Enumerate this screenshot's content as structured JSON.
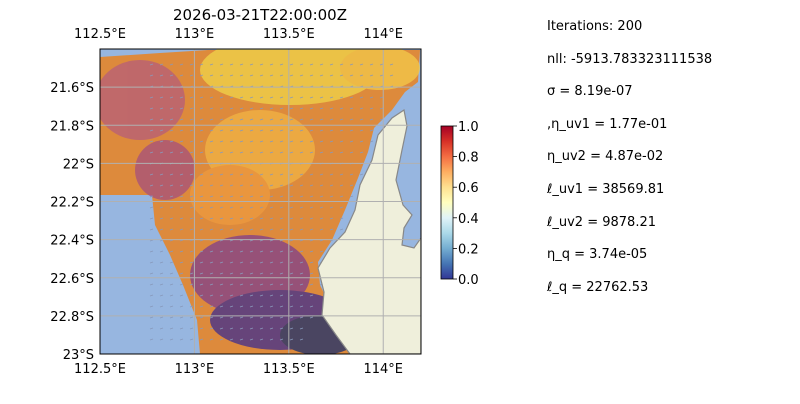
{
  "chart_data": {
    "type": "heatmap",
    "title": "2026-03-21T22:00:00Z",
    "x_tick_labels": [
      "112.5°E",
      "113°E",
      "113.5°E",
      "114°E"
    ],
    "x_ticks": [
      112.5,
      113.0,
      113.5,
      114.0
    ],
    "y_tick_labels": [
      "21.6°S",
      "21.8°S",
      "22°S",
      "22.2°S",
      "22.4°S",
      "22.6°S",
      "22.8°S",
      "23°S"
    ],
    "y_ticks": [
      -21.6,
      -21.8,
      -22.0,
      -22.2,
      -22.4,
      -22.6,
      -22.8,
      -23.0
    ],
    "xlim": [
      112.5,
      114.2
    ],
    "ylim": [
      -23.0,
      -21.4
    ],
    "colorbar": {
      "ticks": [
        0.0,
        0.2,
        0.4,
        0.6,
        0.8,
        1.0
      ],
      "tick_labels": [
        "0.0",
        "0.2",
        "0.4",
        "0.6",
        "0.8",
        "1.0"
      ],
      "range": [
        0.0,
        1.0
      ],
      "colormap": "RdYlBu_r"
    },
    "grid": true,
    "colors": {
      "ocean": "#97b6e0",
      "land": "#efefdb",
      "coastline": "#888888"
    }
  },
  "stats": [
    "Iterations: 200",
    "nll: -5913.783323111538",
    "σ = 8.19e-07",
    ",η_uv1 = 1.77e-01",
    "η_uv2 = 4.87e-02",
    "ℓ_uv1 = 38569.81",
    "ℓ_uv2 = 9878.21",
    "η_q = 3.74e-05",
    "ℓ_q = 22762.53"
  ]
}
